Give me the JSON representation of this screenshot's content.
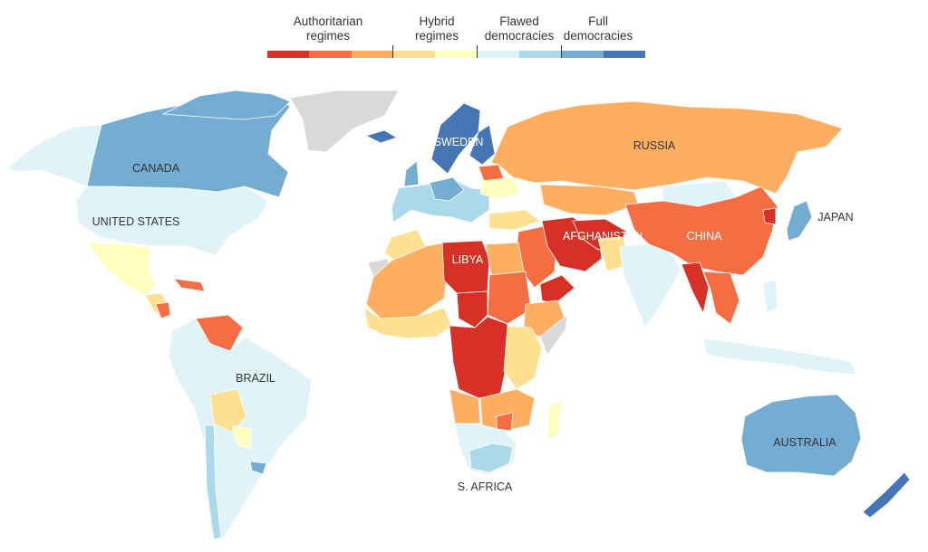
{
  "legend": {
    "categories": [
      {
        "label": "Authoritarian\nregimes"
      },
      {
        "label": "Hybrid\nregimes"
      },
      {
        "label": "Flawed\ndemocracies"
      },
      {
        "label": "Full\ndemocracies"
      }
    ],
    "scale_colors": [
      "#d73027",
      "#f46d43",
      "#fdae61",
      "#fee090",
      "#ffffbf",
      "#e0f3f8",
      "#abd9e9",
      "#74add1",
      "#4575b4"
    ]
  },
  "map": {
    "no_data_color": "#d9d9d9",
    "labels": {
      "canada": "CANADA",
      "united_states": "UNITED STATES",
      "brazil": "BRAZIL",
      "russia": "RUSSIA",
      "sweden": "SWEDEN",
      "libya": "LIBYA",
      "afghanistan": "AFGHANISTAN",
      "china": "CHINA",
      "japan": "JAPAN",
      "australia": "AUSTRALIA",
      "south_africa": "S. AFRICA"
    }
  }
}
